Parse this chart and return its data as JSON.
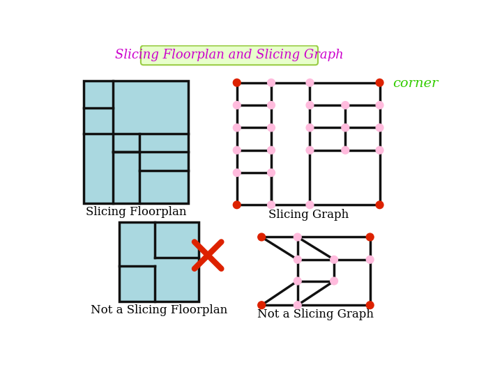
{
  "title": "Slicing Floorplan and Slicing Graph",
  "title_color": "#cc00cc",
  "title_bg": "#e8ffcc",
  "title_border": "#99cc44",
  "corner_text": "corner",
  "corner_color": "#33cc00",
  "bg_color": "#ffffff",
  "light_blue": "#aad8e0",
  "node_pink": "#ffbbdd",
  "node_red": "#dd2200",
  "edge_color": "#111111",
  "floorplan_border": "#111111",
  "cross_color": "#dd2200",
  "label_fontsize": 12,
  "title_fontsize": 13
}
